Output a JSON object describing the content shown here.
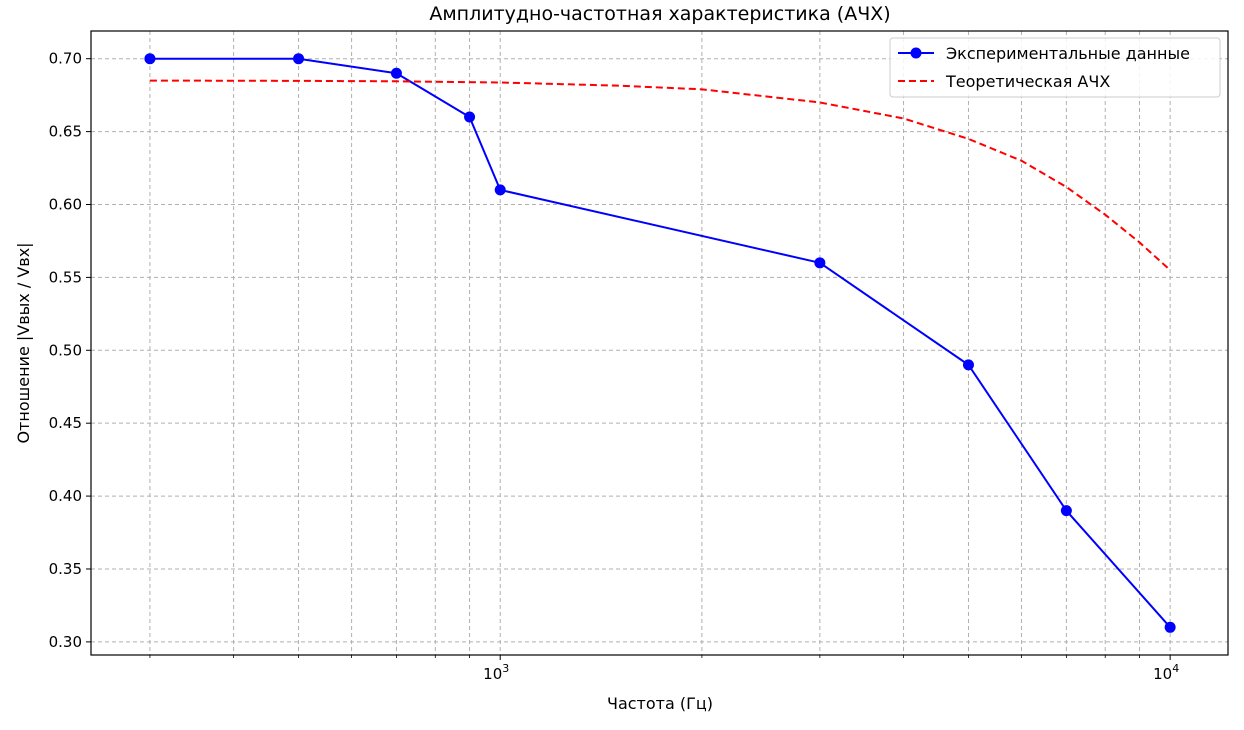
{
  "chart_data": {
    "type": "line",
    "title": "Амплитудно-частотная характеристика (АЧХ)",
    "xlabel": "Частота (Гц)",
    "ylabel": "Отношение |Vвых / Vвх|",
    "xscale": "log",
    "xlim": [
      245,
      12200
    ],
    "ylim": [
      0.291,
      0.719
    ],
    "grid": true,
    "legend_position": "top-right",
    "x_ticks_major": [
      {
        "value": 1000,
        "base": "10",
        "exp": "3"
      },
      {
        "value": 10000,
        "base": "10",
        "exp": "4"
      }
    ],
    "x_ticks_minor": [
      300,
      400,
      500,
      600,
      700,
      800,
      900,
      2000,
      3000,
      4000,
      5000,
      6000,
      7000,
      8000,
      9000
    ],
    "y_ticks": [
      "0.30",
      "0.35",
      "0.40",
      "0.45",
      "0.50",
      "0.55",
      "0.60",
      "0.65",
      "0.70"
    ],
    "series": [
      {
        "name": "Экспериментальные данные",
        "color": "#0000ff",
        "style": "solid",
        "marker": "circle",
        "x": [
          300,
          500,
          700,
          900,
          1000,
          3000,
          5000,
          7000,
          10000
        ],
        "y": [
          0.7,
          0.7,
          0.69,
          0.66,
          0.61,
          0.56,
          0.49,
          0.39,
          0.31
        ]
      },
      {
        "name": "Теоретическая АЧХ",
        "color": "#ff0000",
        "style": "dashed",
        "marker": "none",
        "x": [
          300,
          500,
          700,
          1000,
          1500,
          2000,
          3000,
          4000,
          5000,
          6000,
          7000,
          8000,
          9000,
          10000
        ],
        "y": [
          0.685,
          0.6848,
          0.6845,
          0.6837,
          0.6815,
          0.679,
          0.67,
          0.659,
          0.645,
          0.63,
          0.612,
          0.593,
          0.574,
          0.555
        ]
      }
    ]
  }
}
